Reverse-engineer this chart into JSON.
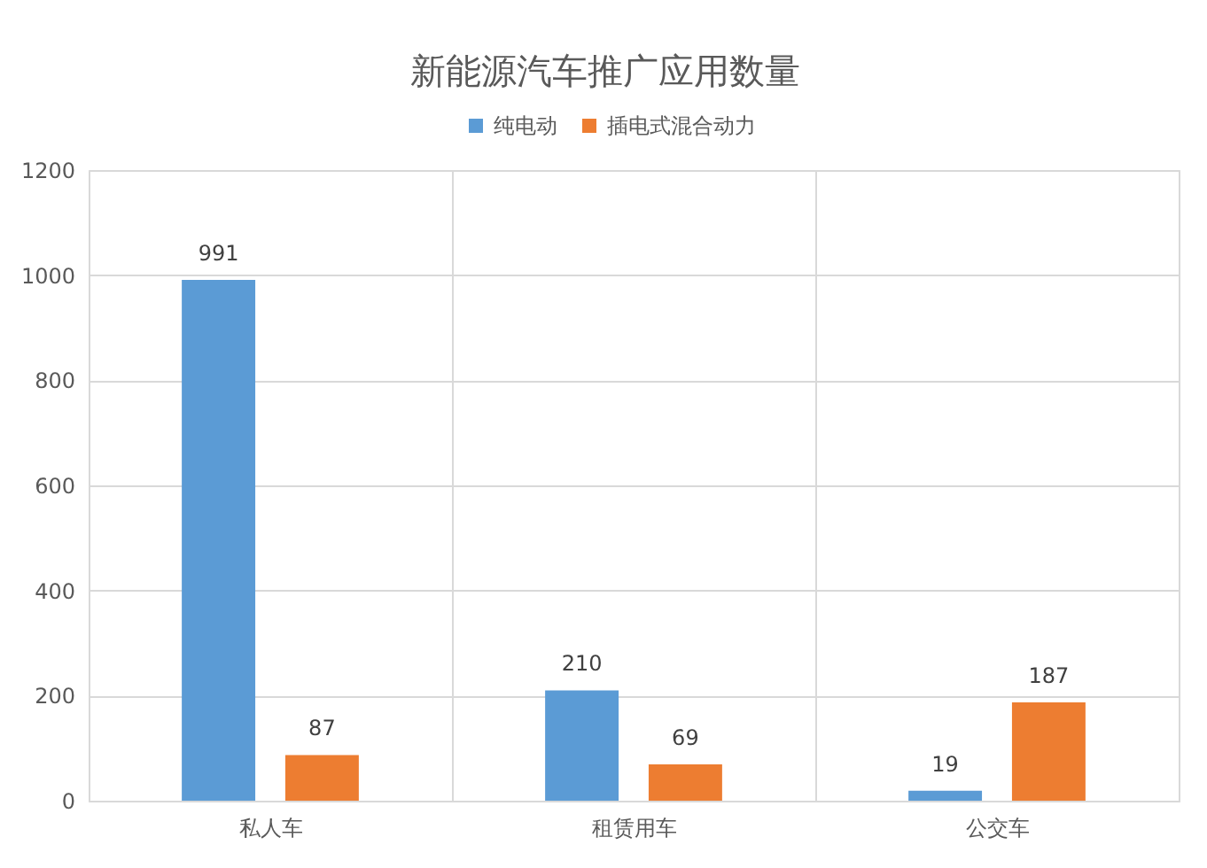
{
  "chart_data": {
    "type": "bar",
    "title": "新能源汽车推广应用数量",
    "categories": [
      "私人车",
      "租赁用车",
      "公交车"
    ],
    "series": [
      {
        "name": "纯电动",
        "color": "#5b9bd5",
        "values": [
          991,
          210,
          19
        ]
      },
      {
        "name": "插电式混合动力",
        "color": "#ed7d31",
        "values": [
          87,
          69,
          187
        ]
      }
    ],
    "ylim": [
      0,
      1200
    ],
    "yticks": [
      0,
      200,
      400,
      600,
      800,
      1000,
      1200
    ],
    "grid": true,
    "legend": "top",
    "data_labels": true
  }
}
